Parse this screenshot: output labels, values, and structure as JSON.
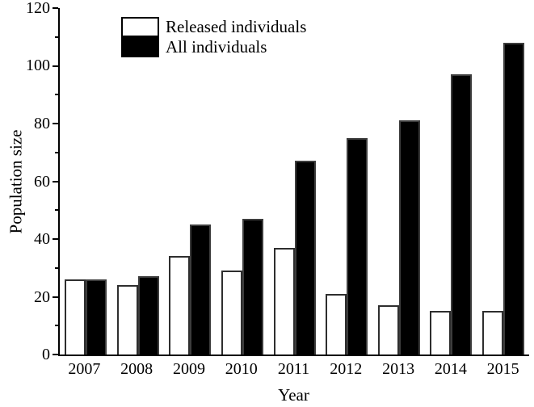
{
  "chart_data": {
    "type": "bar",
    "title": "",
    "xlabel": "Year",
    "ylabel": "Population size",
    "categories": [
      "2007",
      "2008",
      "2009",
      "2010",
      "2011",
      "2012",
      "2013",
      "2014",
      "2015"
    ],
    "series": [
      {
        "name": "Released individuals",
        "color": "#ffffff",
        "outline": "#2e2e2e",
        "values": [
          26,
          24,
          34,
          29,
          37,
          21,
          17,
          15,
          15
        ]
      },
      {
        "name": "All individuals",
        "color": "#000000",
        "outline": "#3d3d3d",
        "values": [
          26,
          27,
          45,
          47,
          67,
          75,
          81,
          97,
          108
        ]
      }
    ],
    "ylim": [
      0,
      120
    ],
    "yticks": [
      0,
      20,
      40,
      60,
      80,
      100,
      120
    ],
    "ytick_labels": [
      "0",
      "20",
      "40",
      "60",
      "80",
      "100",
      "120"
    ],
    "minor_tick_interval": 10,
    "grid": false,
    "legend_position": "top-left-inside",
    "bar_order": "released-then-all"
  }
}
